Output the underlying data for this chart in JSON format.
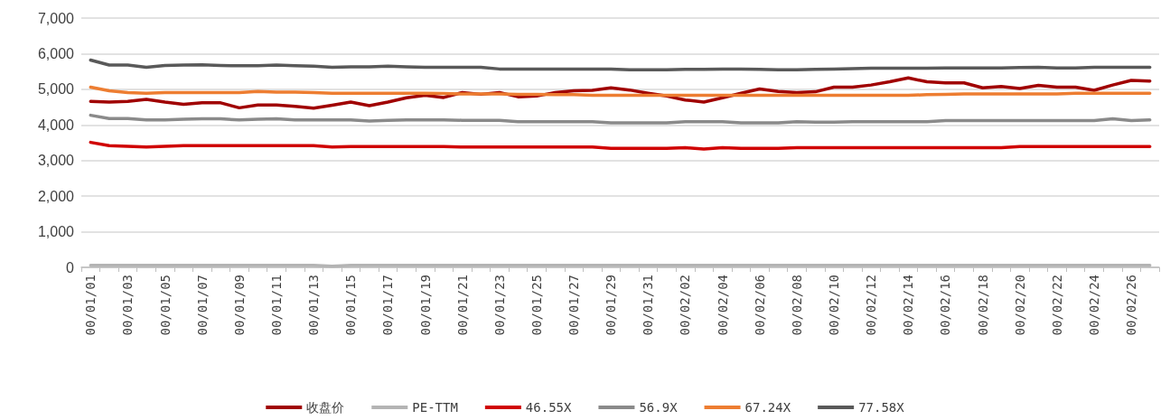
{
  "chart_data": {
    "type": "line",
    "categories": [
      "00/01/01",
      null,
      "00/01/03",
      null,
      "00/01/05",
      null,
      "00/01/07",
      null,
      "00/01/09",
      null,
      "00/01/11",
      null,
      "00/01/13",
      null,
      "00/01/15",
      null,
      "00/01/17",
      null,
      "00/01/19",
      null,
      "00/01/21",
      null,
      "00/01/23",
      null,
      "00/01/25",
      null,
      "00/01/27",
      null,
      "00/01/29",
      null,
      "00/01/31",
      null,
      "00/02/02",
      null,
      "00/02/04",
      null,
      "00/02/06",
      null,
      "00/02/08",
      null,
      "00/02/10",
      null,
      "00/02/12",
      null,
      "00/02/14",
      null,
      "00/02/16",
      null,
      "00/02/18",
      null,
      "00/02/20",
      null,
      "00/02/22",
      null,
      "00/02/24",
      null,
      "00/02/26",
      null
    ],
    "series": [
      {
        "name": "收盘价",
        "color": "#a00000",
        "values": [
          4660,
          4640,
          4660,
          4720,
          4640,
          4580,
          4620,
          4620,
          4480,
          4560,
          4560,
          4520,
          4470,
          4550,
          4640,
          4540,
          4640,
          4760,
          4830,
          4770,
          4910,
          4860,
          4910,
          4790,
          4810,
          4910,
          4960,
          4970,
          5040,
          4980,
          4890,
          4810,
          4700,
          4640,
          4760,
          4890,
          5010,
          4940,
          4910,
          4930,
          5060,
          5060,
          5120,
          5210,
          5320,
          5210,
          5180,
          5180,
          5040,
          5080,
          5020,
          5110,
          5060,
          5060,
          4970,
          5120,
          5250,
          5230
        ]
      },
      {
        "name": "PE-TTM",
        "color": "#b4b4b4",
        "values": [
          60,
          60,
          60,
          60,
          60,
          60,
          60,
          60,
          60,
          60,
          60,
          60,
          60,
          30,
          60,
          60,
          60,
          60,
          60,
          60,
          60,
          60,
          60,
          60,
          60,
          60,
          60,
          60,
          60,
          60,
          60,
          60,
          60,
          60,
          60,
          60,
          60,
          60,
          60,
          60,
          60,
          60,
          60,
          60,
          60,
          60,
          60,
          60,
          60,
          60,
          60,
          60,
          60,
          60,
          60,
          60,
          60,
          60
        ]
      },
      {
        "name": "46.55X",
        "color": "#d00000",
        "values": [
          3510,
          3420,
          3400,
          3380,
          3400,
          3420,
          3420,
          3420,
          3420,
          3420,
          3420,
          3420,
          3420,
          3380,
          3390,
          3390,
          3390,
          3390,
          3390,
          3390,
          3380,
          3380,
          3380,
          3380,
          3380,
          3380,
          3380,
          3380,
          3340,
          3340,
          3340,
          3340,
          3360,
          3320,
          3360,
          3340,
          3340,
          3340,
          3360,
          3360,
          3360,
          3360,
          3360,
          3360,
          3360,
          3360,
          3360,
          3360,
          3360,
          3360,
          3390,
          3390,
          3390,
          3390,
          3390,
          3390,
          3390,
          3390
        ]
      },
      {
        "name": "56.9X",
        "color": "#8a8a8a",
        "values": [
          4270,
          4180,
          4180,
          4140,
          4140,
          4160,
          4170,
          4170,
          4140,
          4160,
          4170,
          4140,
          4140,
          4140,
          4140,
          4110,
          4130,
          4140,
          4140,
          4140,
          4130,
          4130,
          4130,
          4090,
          4090,
          4090,
          4090,
          4090,
          4060,
          4060,
          4060,
          4060,
          4090,
          4090,
          4090,
          4060,
          4060,
          4060,
          4090,
          4080,
          4080,
          4090,
          4090,
          4090,
          4090,
          4090,
          4120,
          4120,
          4120,
          4120,
          4120,
          4120,
          4120,
          4120,
          4120,
          4170,
          4120,
          4140
        ]
      },
      {
        "name": "67.24X",
        "color": "#ed7d31",
        "values": [
          5060,
          4960,
          4910,
          4890,
          4910,
          4910,
          4910,
          4910,
          4910,
          4940,
          4920,
          4920,
          4910,
          4890,
          4890,
          4890,
          4890,
          4890,
          4890,
          4880,
          4870,
          4870,
          4870,
          4860,
          4860,
          4850,
          4850,
          4830,
          4830,
          4830,
          4830,
          4830,
          4830,
          4830,
          4830,
          4830,
          4830,
          4830,
          4830,
          4830,
          4830,
          4830,
          4830,
          4830,
          4830,
          4850,
          4860,
          4870,
          4870,
          4870,
          4870,
          4870,
          4870,
          4890,
          4890,
          4890,
          4890,
          4890
        ]
      },
      {
        "name": "77.58X",
        "color": "#595959",
        "values": [
          5820,
          5680,
          5680,
          5620,
          5670,
          5680,
          5690,
          5670,
          5660,
          5660,
          5680,
          5660,
          5650,
          5620,
          5630,
          5630,
          5650,
          5630,
          5620,
          5620,
          5620,
          5620,
          5570,
          5570,
          5570,
          5570,
          5570,
          5570,
          5570,
          5550,
          5550,
          5550,
          5560,
          5560,
          5570,
          5570,
          5560,
          5550,
          5550,
          5560,
          5570,
          5580,
          5590,
          5590,
          5590,
          5590,
          5600,
          5600,
          5600,
          5600,
          5610,
          5620,
          5600,
          5600,
          5620,
          5620,
          5620,
          5620
        ]
      }
    ],
    "ylim": [
      0,
      7000
    ],
    "yticks": [
      {
        "value": 0,
        "label": "0"
      },
      {
        "value": 1000,
        "label": "1,000"
      },
      {
        "value": 2000,
        "label": "2,000"
      },
      {
        "value": 3000,
        "label": "3,000"
      },
      {
        "value": 4000,
        "label": "4,000"
      },
      {
        "value": 5000,
        "label": "5,000"
      },
      {
        "value": 6000,
        "label": "6,000"
      },
      {
        "value": 7000,
        "label": "7,000"
      }
    ],
    "grid": "y",
    "legend": "bottom",
    "marker": "none",
    "line_style": "solid"
  }
}
